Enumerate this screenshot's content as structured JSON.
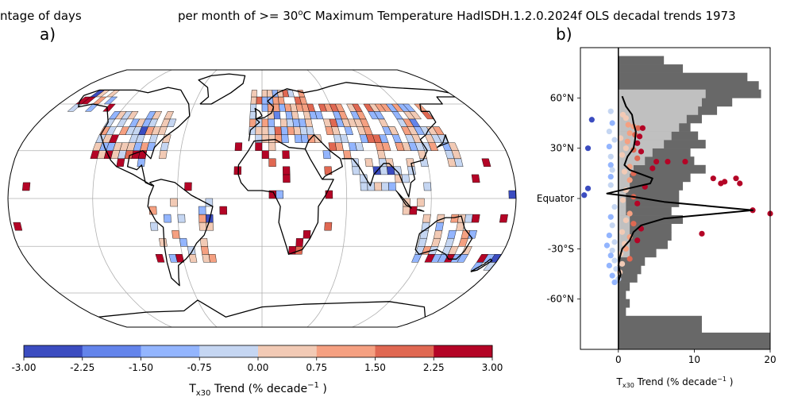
{
  "header": {
    "title_left": "ntage of days",
    "title_main": "per month of >= 30",
    "title_sup": "o",
    "title_rest": "C Maximum Temperature HadISDH.1.2.0.2024f OLS decadal trends 1973"
  },
  "panel_a": {
    "label": "a)"
  },
  "panel_b": {
    "label": "b)"
  },
  "colorbar": {
    "colors": [
      "#3b4cc0",
      "#6384eb",
      "#93b5fe",
      "#c5d6f2",
      "#f2cab5",
      "#f5a081",
      "#e06852",
      "#b40426"
    ],
    "ticks": [
      "-3.00",
      "-2.25",
      "-1.50",
      "-0.75",
      "0.00",
      "0.75",
      "1.50",
      "2.25",
      "3.00"
    ],
    "label_main": "T",
    "label_sub": "x30",
    "label_rest": " Trend (% decade",
    "label_sup": "−1",
    "label_end": " )"
  },
  "chart_data": [
    {
      "type": "heatmap",
      "panel": "a)",
      "projection": "Robinson (global)",
      "value_range": [
        -3.0,
        3.0
      ],
      "cmap": "coolwarm",
      "note_cells": "gridded station trends; color = trend class"
    },
    {
      "type": "scatter",
      "panel": "b)",
      "xlabel": "T_x30 Trend (% decade^-1 )",
      "xlim": [
        -5,
        20
      ],
      "ylim": [
        -90,
        90
      ],
      "xticks": [
        "0",
        "10",
        "20"
      ],
      "yticks": [
        {
          "v": 60,
          "label": "60°N"
        },
        {
          "v": 30,
          "label": "30°N"
        },
        {
          "v": 0,
          "label": "Equator"
        },
        {
          "v": -30,
          "label": "-30°S"
        },
        {
          "v": -60,
          "label": "-60°N"
        }
      ],
      "coverage_all": [
        {
          "lat": 82.5,
          "x": 6
        },
        {
          "lat": 77.5,
          "x": 8.5
        },
        {
          "lat": 72.5,
          "x": 17
        },
        {
          "lat": 67.5,
          "x": 18.5
        },
        {
          "lat": 62.5,
          "x": 18.8
        },
        {
          "lat": 57.5,
          "x": 15
        },
        {
          "lat": 52.5,
          "x": 13
        },
        {
          "lat": 47.5,
          "x": 11
        },
        {
          "lat": 42.5,
          "x": 9.5
        },
        {
          "lat": 37.5,
          "x": 10.5
        },
        {
          "lat": 32.5,
          "x": 11.5
        },
        {
          "lat": 27.5,
          "x": 9.5
        },
        {
          "lat": 22.5,
          "x": 10
        },
        {
          "lat": 17.5,
          "x": 11.5
        },
        {
          "lat": 12.5,
          "x": 9.5
        },
        {
          "lat": 7.5,
          "x": 8.5
        },
        {
          "lat": 2.5,
          "x": 8
        },
        {
          "lat": -2.5,
          "x": 8
        },
        {
          "lat": -7.5,
          "x": 7
        },
        {
          "lat": -12.5,
          "x": 8.5
        },
        {
          "lat": -17.5,
          "x": 7
        },
        {
          "lat": -22.5,
          "x": 7
        },
        {
          "lat": -27.5,
          "x": 6.5
        },
        {
          "lat": -32.5,
          "x": 5
        },
        {
          "lat": -37.5,
          "x": 3.5
        },
        {
          "lat": -42.5,
          "x": 3
        },
        {
          "lat": -47.5,
          "x": 2.5
        },
        {
          "lat": -52.5,
          "x": 1.5
        },
        {
          "lat": -57.5,
          "x": 1
        },
        {
          "lat": -62.5,
          "x": 1.5
        },
        {
          "lat": -67.5,
          "x": 1
        },
        {
          "lat": -72.5,
          "x": 11
        },
        {
          "lat": -77.5,
          "x": 11
        },
        {
          "lat": -82.5,
          "x": 20
        },
        {
          "lat": -87.5,
          "x": 20
        }
      ],
      "coverage_data": [
        {
          "lat": 62.5,
          "x": 11.5
        },
        {
          "lat": 57.5,
          "x": 11
        },
        {
          "lat": 52.5,
          "x": 10.5
        },
        {
          "lat": 47.5,
          "x": 9
        },
        {
          "lat": 42.5,
          "x": 8
        },
        {
          "lat": 37.5,
          "x": 7
        },
        {
          "lat": 32.5,
          "x": 6
        },
        {
          "lat": 27.5,
          "x": 4.5
        },
        {
          "lat": 22.5,
          "x": 3.5
        },
        {
          "lat": 17.5,
          "x": 2
        },
        {
          "lat": 12.5,
          "x": 1.5
        },
        {
          "lat": 7.5,
          "x": 1.5
        },
        {
          "lat": 2.5,
          "x": 1
        },
        {
          "lat": -2.5,
          "x": 1
        },
        {
          "lat": -7.5,
          "x": 1
        },
        {
          "lat": -12.5,
          "x": 1.5
        },
        {
          "lat": -17.5,
          "x": 1.5
        },
        {
          "lat": -22.5,
          "x": 1.5
        },
        {
          "lat": -27.5,
          "x": 1.5
        },
        {
          "lat": -32.5,
          "x": 1.5
        }
      ],
      "zonal_mean_line": [
        {
          "lat": 61,
          "x": 0.5
        },
        {
          "lat": 55,
          "x": 1.0
        },
        {
          "lat": 50,
          "x": 1.8
        },
        {
          "lat": 45,
          "x": 2.0
        },
        {
          "lat": 40,
          "x": 2.3
        },
        {
          "lat": 35,
          "x": 2.2
        },
        {
          "lat": 30,
          "x": 2.0
        },
        {
          "lat": 25,
          "x": 1.2
        },
        {
          "lat": 20,
          "x": 0.8
        },
        {
          "lat": 17,
          "x": 1.5
        },
        {
          "lat": 12,
          "x": 4.5
        },
        {
          "lat": 9,
          "x": 4.2
        },
        {
          "lat": 7,
          "x": 2.3
        },
        {
          "lat": 3,
          "x": -1.5
        },
        {
          "lat": 1,
          "x": 2.0
        },
        {
          "lat": -2,
          "x": 6.0
        },
        {
          "lat": -7,
          "x": 17.7
        },
        {
          "lat": -12,
          "x": 6.0
        },
        {
          "lat": -16,
          "x": 3.0
        },
        {
          "lat": -20,
          "x": 2.0
        },
        {
          "lat": -25,
          "x": 1.5
        },
        {
          "lat": -30,
          "x": 0.5
        },
        {
          "lat": -35,
          "x": 0.2
        },
        {
          "lat": -40,
          "x": 0.0
        },
        {
          "lat": -45,
          "x": 0.3
        },
        {
          "lat": -50,
          "x": 0.0
        }
      ],
      "points": [
        {
          "lat": 52,
          "x": -1.0,
          "c": 3
        },
        {
          "lat": 50,
          "x": 0.6,
          "c": 4
        },
        {
          "lat": 48,
          "x": 1.0,
          "c": 4
        },
        {
          "lat": 47,
          "x": -3.5,
          "c": 0
        },
        {
          "lat": 45,
          "x": -0.8,
          "c": 2
        },
        {
          "lat": 44,
          "x": 1.3,
          "c": 5
        },
        {
          "lat": 43,
          "x": 2.0,
          "c": 5
        },
        {
          "lat": 42,
          "x": 2.6,
          "c": 6
        },
        {
          "lat": 42,
          "x": 3.2,
          "c": 7
        },
        {
          "lat": 40,
          "x": -1.2,
          "c": 3
        },
        {
          "lat": 39,
          "x": 1.5,
          "c": 5
        },
        {
          "lat": 38,
          "x": 2.2,
          "c": 6
        },
        {
          "lat": 37,
          "x": 2.8,
          "c": 7
        },
        {
          "lat": 36,
          "x": 0.3,
          "c": 4
        },
        {
          "lat": 35,
          "x": -0.5,
          "c": 3
        },
        {
          "lat": 34,
          "x": 1.2,
          "c": 5
        },
        {
          "lat": 33,
          "x": 2.5,
          "c": 7
        },
        {
          "lat": 31,
          "x": -1.2,
          "c": 2
        },
        {
          "lat": 30,
          "x": 1.0,
          "c": 4
        },
        {
          "lat": 30,
          "x": -4.0,
          "c": 0
        },
        {
          "lat": 29,
          "x": 2.0,
          "c": 6
        },
        {
          "lat": 28,
          "x": 3.0,
          "c": 7
        },
        {
          "lat": 26,
          "x": 0.5,
          "c": 4
        },
        {
          "lat": 25,
          "x": -1.0,
          "c": 3
        },
        {
          "lat": 24,
          "x": 2.5,
          "c": 6
        },
        {
          "lat": 22,
          "x": -5.2,
          "c": 0
        },
        {
          "lat": 22,
          "x": 5.0,
          "c": 7
        },
        {
          "lat": 22,
          "x": 6.5,
          "c": 7
        },
        {
          "lat": 22,
          "x": 8.8,
          "c": 7
        },
        {
          "lat": 20,
          "x": -1.0,
          "c": 2
        },
        {
          "lat": 19,
          "x": 1.5,
          "c": 5
        },
        {
          "lat": 18,
          "x": 4.5,
          "c": 7
        },
        {
          "lat": 17,
          "x": -0.8,
          "c": 3
        },
        {
          "lat": 16,
          "x": 0.8,
          "c": 4
        },
        {
          "lat": 15,
          "x": 2.0,
          "c": 6
        },
        {
          "lat": 13,
          "x": -1.0,
          "c": 2
        },
        {
          "lat": 12,
          "x": 12.5,
          "c": 7
        },
        {
          "lat": 12,
          "x": 15.5,
          "c": 7
        },
        {
          "lat": 11,
          "x": 1.5,
          "c": 5
        },
        {
          "lat": 10,
          "x": 14.0,
          "c": 7
        },
        {
          "lat": 9,
          "x": 13.5,
          "c": 7
        },
        {
          "lat": 9,
          "x": 16.0,
          "c": 7
        },
        {
          "lat": 8,
          "x": -1.0,
          "c": 3
        },
        {
          "lat": 7,
          "x": 3.5,
          "c": 7
        },
        {
          "lat": 6,
          "x": -4.0,
          "c": 0
        },
        {
          "lat": 5,
          "x": 1.0,
          "c": 4
        },
        {
          "lat": 2,
          "x": -4.5,
          "c": 0
        },
        {
          "lat": 1,
          "x": 2.0,
          "c": 6
        },
        {
          "lat": -1,
          "x": 0.6,
          "c": 4
        },
        {
          "lat": -3,
          "x": 2.5,
          "c": 7
        },
        {
          "lat": -5,
          "x": -0.5,
          "c": 3
        },
        {
          "lat": -7,
          "x": 17.7,
          "c": 7
        },
        {
          "lat": -9,
          "x": 20.0,
          "c": 7
        },
        {
          "lat": -9,
          "x": 1.5,
          "c": 5
        },
        {
          "lat": -11,
          "x": -1.0,
          "c": 2
        },
        {
          "lat": -13,
          "x": 1.0,
          "c": 4
        },
        {
          "lat": -15,
          "x": 2.0,
          "c": 6
        },
        {
          "lat": -16,
          "x": -0.8,
          "c": 3
        },
        {
          "lat": -18,
          "x": 3.0,
          "c": 7
        },
        {
          "lat": -20,
          "x": 0.5,
          "c": 4
        },
        {
          "lat": -21,
          "x": 11.0,
          "c": 7
        },
        {
          "lat": -22,
          "x": -1.2,
          "c": 2
        },
        {
          "lat": -23,
          "x": 1.5,
          "c": 5
        },
        {
          "lat": -25,
          "x": 2.5,
          "c": 7
        },
        {
          "lat": -26,
          "x": -0.5,
          "c": 3
        },
        {
          "lat": -27,
          "x": 0.8,
          "c": 4
        },
        {
          "lat": -28,
          "x": -1.5,
          "c": 2
        },
        {
          "lat": -30,
          "x": 1.0,
          "c": 5
        },
        {
          "lat": -31,
          "x": -0.8,
          "c": 3
        },
        {
          "lat": -33,
          "x": 0.3,
          "c": 4
        },
        {
          "lat": -34,
          "x": -1.0,
          "c": 2
        },
        {
          "lat": -36,
          "x": 1.5,
          "c": 6
        },
        {
          "lat": -37,
          "x": -0.5,
          "c": 3
        },
        {
          "lat": -39,
          "x": 0.5,
          "c": 4
        },
        {
          "lat": -40,
          "x": -1.2,
          "c": 2
        },
        {
          "lat": -42,
          "x": -0.3,
          "c": 3
        },
        {
          "lat": -44,
          "x": 0.2,
          "c": 4
        },
        {
          "lat": -46,
          "x": -0.8,
          "c": 2
        },
        {
          "lat": -48,
          "x": 0.0,
          "c": 3
        },
        {
          "lat": -50,
          "x": -0.5,
          "c": 2
        }
      ]
    }
  ]
}
